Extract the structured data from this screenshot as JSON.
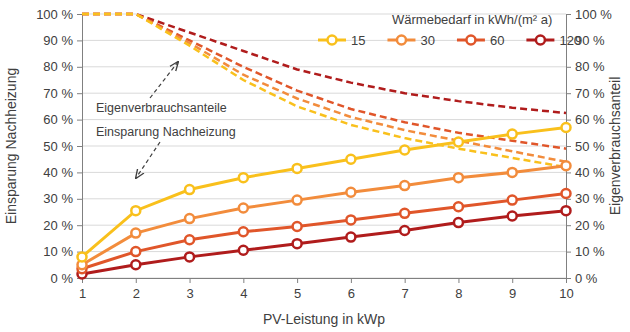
{
  "chart_data": {
    "type": "line",
    "x_label": "PV-Leistung in kWp",
    "y_label": "Einsparung Nachheizung",
    "y2_label": "Eigenverbrauchsanteil",
    "legend_title": "Wärmebedarf in kWh/(m² a)",
    "annotations": [
      "Eigenverbrauchsanteile",
      "Einsparung Nachheizung"
    ],
    "x": [
      1,
      2,
      3,
      4,
      5,
      6,
      7,
      8,
      9,
      10
    ],
    "xlim": [
      1,
      10
    ],
    "xticks": [
      1,
      2,
      3,
      4,
      5,
      6,
      7,
      8,
      9,
      10
    ],
    "ylim": [
      0,
      100
    ],
    "yticks": [
      {
        "value": 0,
        "label": "0 %"
      },
      {
        "value": 10,
        "label": "10 %"
      },
      {
        "value": 20,
        "label": "20 %"
      },
      {
        "value": 30,
        "label": "30 %"
      },
      {
        "value": 40,
        "label": "40 %"
      },
      {
        "value": 50,
        "label": "50 %"
      },
      {
        "value": 60,
        "label": "60 %"
      },
      {
        "value": 70,
        "label": "70 %"
      },
      {
        "value": 80,
        "label": "80 %"
      },
      {
        "value": 90,
        "label": "90 %"
      },
      {
        "value": 100,
        "label": "100 %"
      }
    ],
    "y2lim": [
      0,
      100
    ],
    "y2ticks": [
      {
        "value": 0,
        "label": "0 %"
      },
      {
        "value": 10,
        "label": "10 %"
      },
      {
        "value": 20,
        "label": "20 %"
      },
      {
        "value": 30,
        "label": "30 %"
      },
      {
        "value": 40,
        "label": "40 %"
      },
      {
        "value": 50,
        "label": "50 %"
      },
      {
        "value": 60,
        "label": "60 %"
      },
      {
        "value": 70,
        "label": "70 %"
      },
      {
        "value": 80,
        "label": "80 %"
      },
      {
        "value": 90,
        "label": "90 %"
      },
      {
        "value": 100,
        "label": "100 %"
      }
    ],
    "grid": true,
    "legend": "top-right",
    "series": [
      {
        "name": "15",
        "color": "#f9c01c",
        "marker": "circle",
        "line_style": "solid",
        "values": [
          8,
          25.5,
          33.5,
          38,
          41.5,
          45,
          48.5,
          51.5,
          54.5,
          57
        ]
      },
      {
        "name": "30",
        "color": "#f28c3c",
        "marker": "circle",
        "line_style": "solid",
        "values": [
          5,
          17,
          22.5,
          26.5,
          29.5,
          32.5,
          35,
          38,
          40,
          42.5
        ]
      },
      {
        "name": "60",
        "color": "#e0562a",
        "marker": "circle",
        "line_style": "solid",
        "values": [
          3.5,
          10,
          14.5,
          17.5,
          19.5,
          22,
          24.5,
          27,
          29.5,
          32
        ]
      },
      {
        "name": "120",
        "color": "#b01c1c",
        "marker": "circle",
        "line_style": "solid",
        "values": [
          1.5,
          5,
          8,
          10.5,
          13,
          15.5,
          18,
          21,
          23.5,
          25.5
        ]
      },
      {
        "color": "#f9c01c",
        "axis": "y2",
        "line_style": "dashed",
        "values": [
          100,
          100,
          88,
          75,
          65,
          58,
          53,
          49,
          45.5,
          42
        ]
      },
      {
        "color": "#f28c3c",
        "axis": "y2",
        "line_style": "dashed",
        "values": [
          100,
          100,
          89,
          77,
          68,
          61,
          56,
          52,
          48,
          44
        ]
      },
      {
        "color": "#e0562a",
        "axis": "y2",
        "line_style": "dashed",
        "values": [
          100,
          100,
          90,
          80,
          71,
          64,
          59,
          55,
          52,
          49
        ]
      },
      {
        "color": "#b01c1c",
        "axis": "y2",
        "line_style": "dashed",
        "values": [
          100,
          100,
          93,
          86,
          79,
          74,
          70,
          67,
          64.5,
          62.5
        ]
      }
    ]
  }
}
